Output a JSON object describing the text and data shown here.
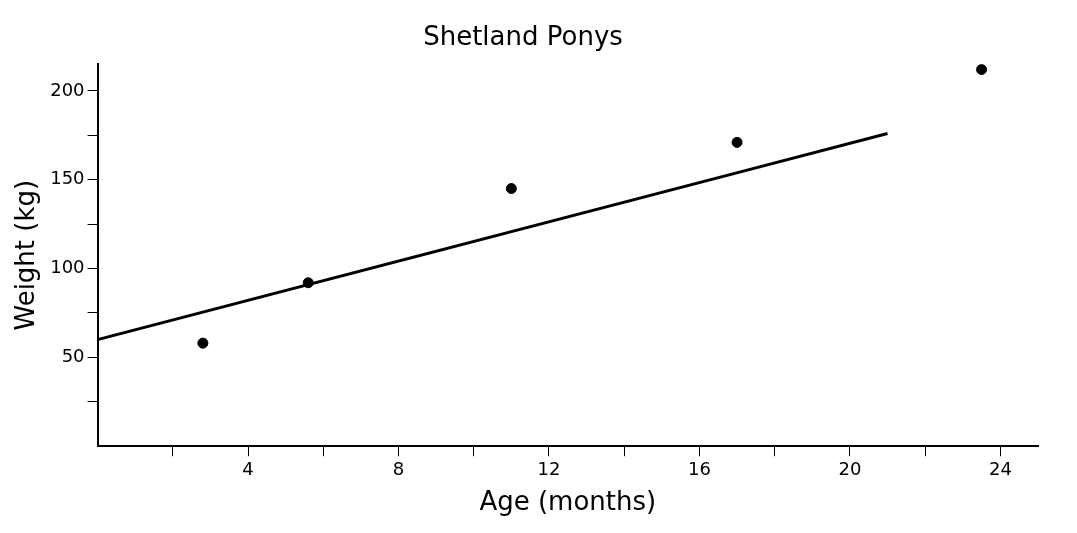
{
  "chart_data": {
    "type": "scatter",
    "title": "Shetland Ponys",
    "xlabel": "Age (months)",
    "ylabel": "Weight (kg)",
    "xlim": [
      0,
      25
    ],
    "ylim": [
      0,
      215
    ],
    "xticks": [
      {
        "value": 2,
        "label": null
      },
      4,
      {
        "value": 6,
        "label": null
      },
      8,
      {
        "value": 10,
        "label": null
      },
      12,
      {
        "value": 14,
        "label": null
      },
      16,
      {
        "value": 18,
        "label": null
      },
      20,
      {
        "value": 22,
        "label": null
      },
      24
    ],
    "yticks": [
      {
        "value": 25,
        "label": null
      },
      50,
      {
        "value": 75,
        "label": null
      },
      100,
      {
        "value": 125,
        "label": null
      },
      150,
      {
        "value": 175,
        "label": null
      },
      200
    ],
    "grid": false,
    "legend": false,
    "marker": "circle",
    "series": [
      {
        "type": "scatter",
        "color": "#000000",
        "x": [
          2.8,
          5.6,
          11,
          17,
          23.5
        ],
        "values": [
          58,
          92,
          145,
          171,
          212
        ]
      },
      {
        "type": "line",
        "color": "#000000",
        "marker": "none",
        "x": [
          0,
          21
        ],
        "values": [
          60,
          176
        ]
      }
    ]
  }
}
